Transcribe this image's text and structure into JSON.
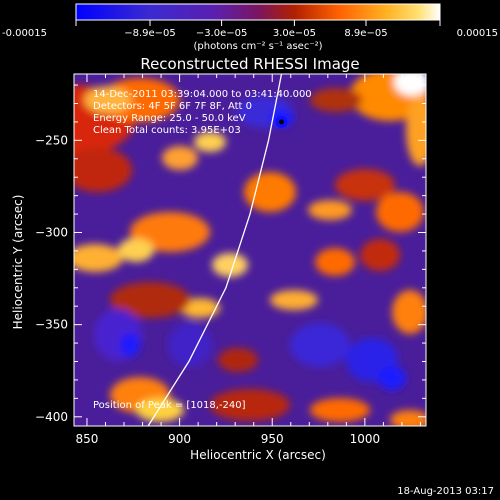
{
  "chart_data": {
    "type": "heatmap",
    "title": "Reconstructed RHESSI Image",
    "xlabel": "Heliocentric X (arcsec)",
    "ylabel": "Heliocentric Y (arcsec)",
    "xlim": [
      843,
      1033
    ],
    "ylim": [
      -405,
      -214
    ],
    "xticks": [
      850,
      900,
      950,
      1000
    ],
    "yticks": [
      -250,
      -300,
      -350,
      -400
    ],
    "colorbar": {
      "min": -0.00015,
      "max": 0.00015,
      "ticks": [
        "-0.00015",
        "−8.9e−05",
        "−3.0e−05",
        "3.0e−05",
        "8.9e−05",
        "0.00015"
      ],
      "tick_values": [
        -0.00015,
        -8.9e-05,
        -3e-05,
        3e-05,
        8.9e-05,
        0.00015
      ],
      "unit_text": "(photons cm⁻² s⁻¹ asec⁻²)",
      "colors": [
        "#0000ff",
        "#5a1fb0",
        "#b02000",
        "#ff6000",
        "#ffd040",
        "#ffffff"
      ]
    },
    "annotations": [
      "14-Dec-2011 03:39:04.000 to 03:41:40.000",
      "Detectors: 4F 5F 6F 7F 8F, Att 0",
      "Energy Range: 25.0 - 50.0 keV",
      "Clean    Total counts: 3.95E+03"
    ],
    "peak_label": "Position of Peak = [1018,-240]",
    "peak_position": [
      1018,
      -240
    ],
    "limb_curve": [
      [
        883,
        -405
      ],
      [
        905,
        -370
      ],
      [
        925,
        -330
      ],
      [
        938,
        -290
      ],
      [
        948,
        -250
      ],
      [
        955,
        -214
      ]
    ],
    "marker_point": [
      955,
      -240
    ]
  },
  "footer": {
    "timestamp": "18-Aug-2013 03:17"
  }
}
